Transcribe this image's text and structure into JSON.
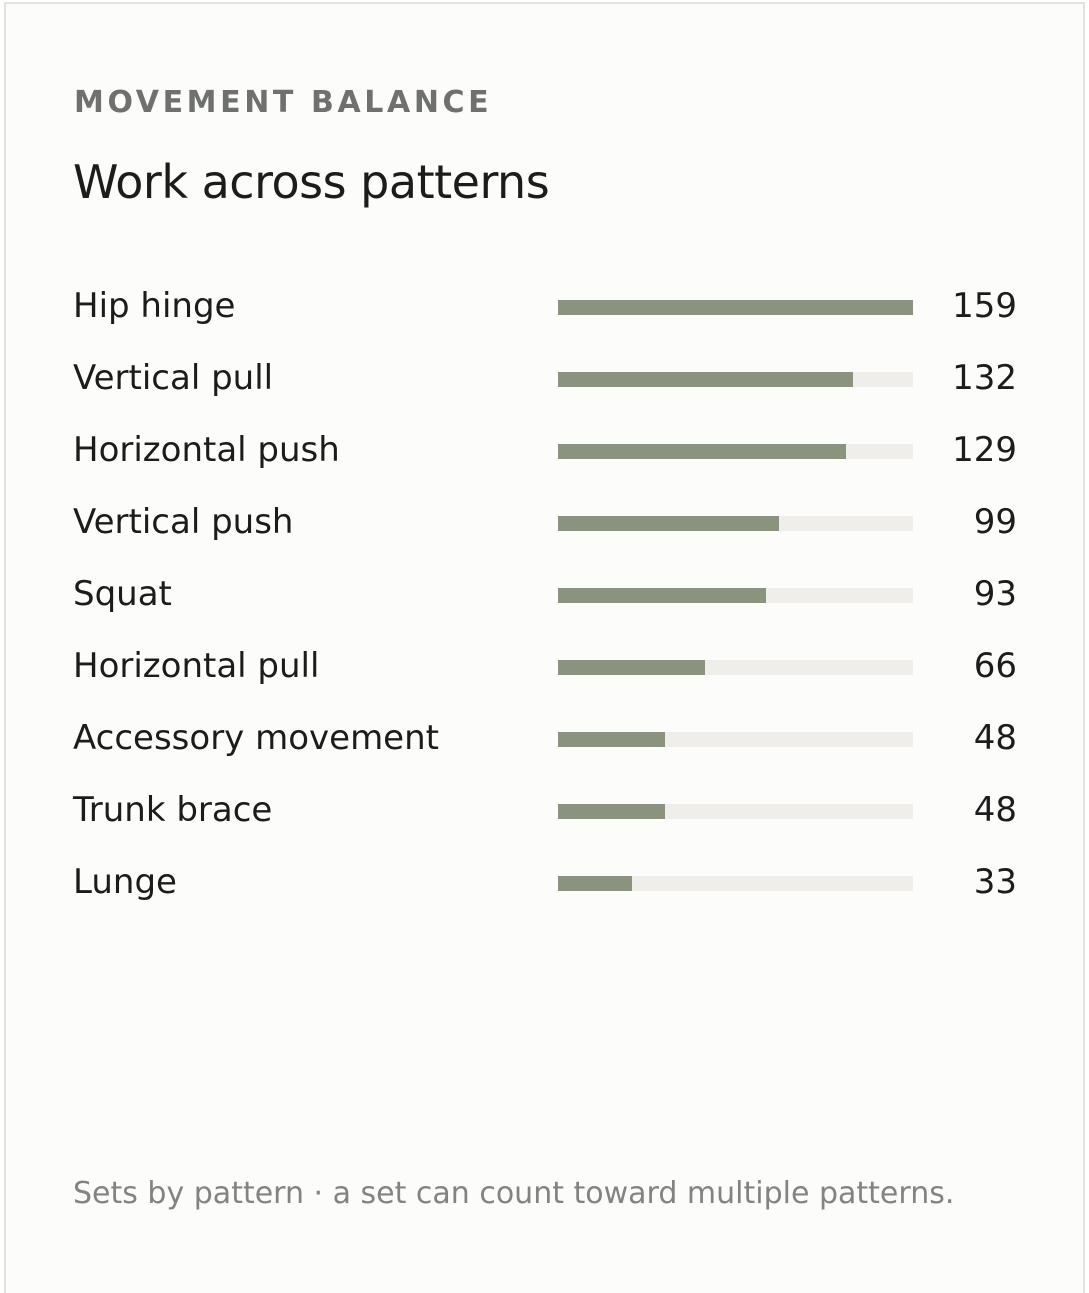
{
  "header": {
    "eyebrow": "MOVEMENT BALANCE",
    "title": "Work across patterns"
  },
  "footnote": "Sets by pattern · a set can count toward multiple patterns.",
  "colors": {
    "bar_fill": "#8a937d",
    "bar_track": "#efeeeb",
    "card_background": "#fcfcfa",
    "text_primary": "#1c1c1c",
    "text_muted": "#82847f"
  },
  "chart_data": {
    "type": "bar",
    "orientation": "horizontal",
    "categories": [
      "Hip hinge",
      "Vertical pull",
      "Horizontal push",
      "Vertical push",
      "Squat",
      "Horizontal pull",
      "Accessory movement",
      "Trunk brace",
      "Lunge"
    ],
    "values": [
      159,
      132,
      129,
      99,
      93,
      66,
      48,
      48,
      33
    ],
    "value_labels": [
      "159",
      "132",
      "129",
      "99",
      "93",
      "66",
      "48",
      "48",
      "33"
    ],
    "xlim": [
      0,
      159
    ],
    "grid": false,
    "legend": "none"
  }
}
